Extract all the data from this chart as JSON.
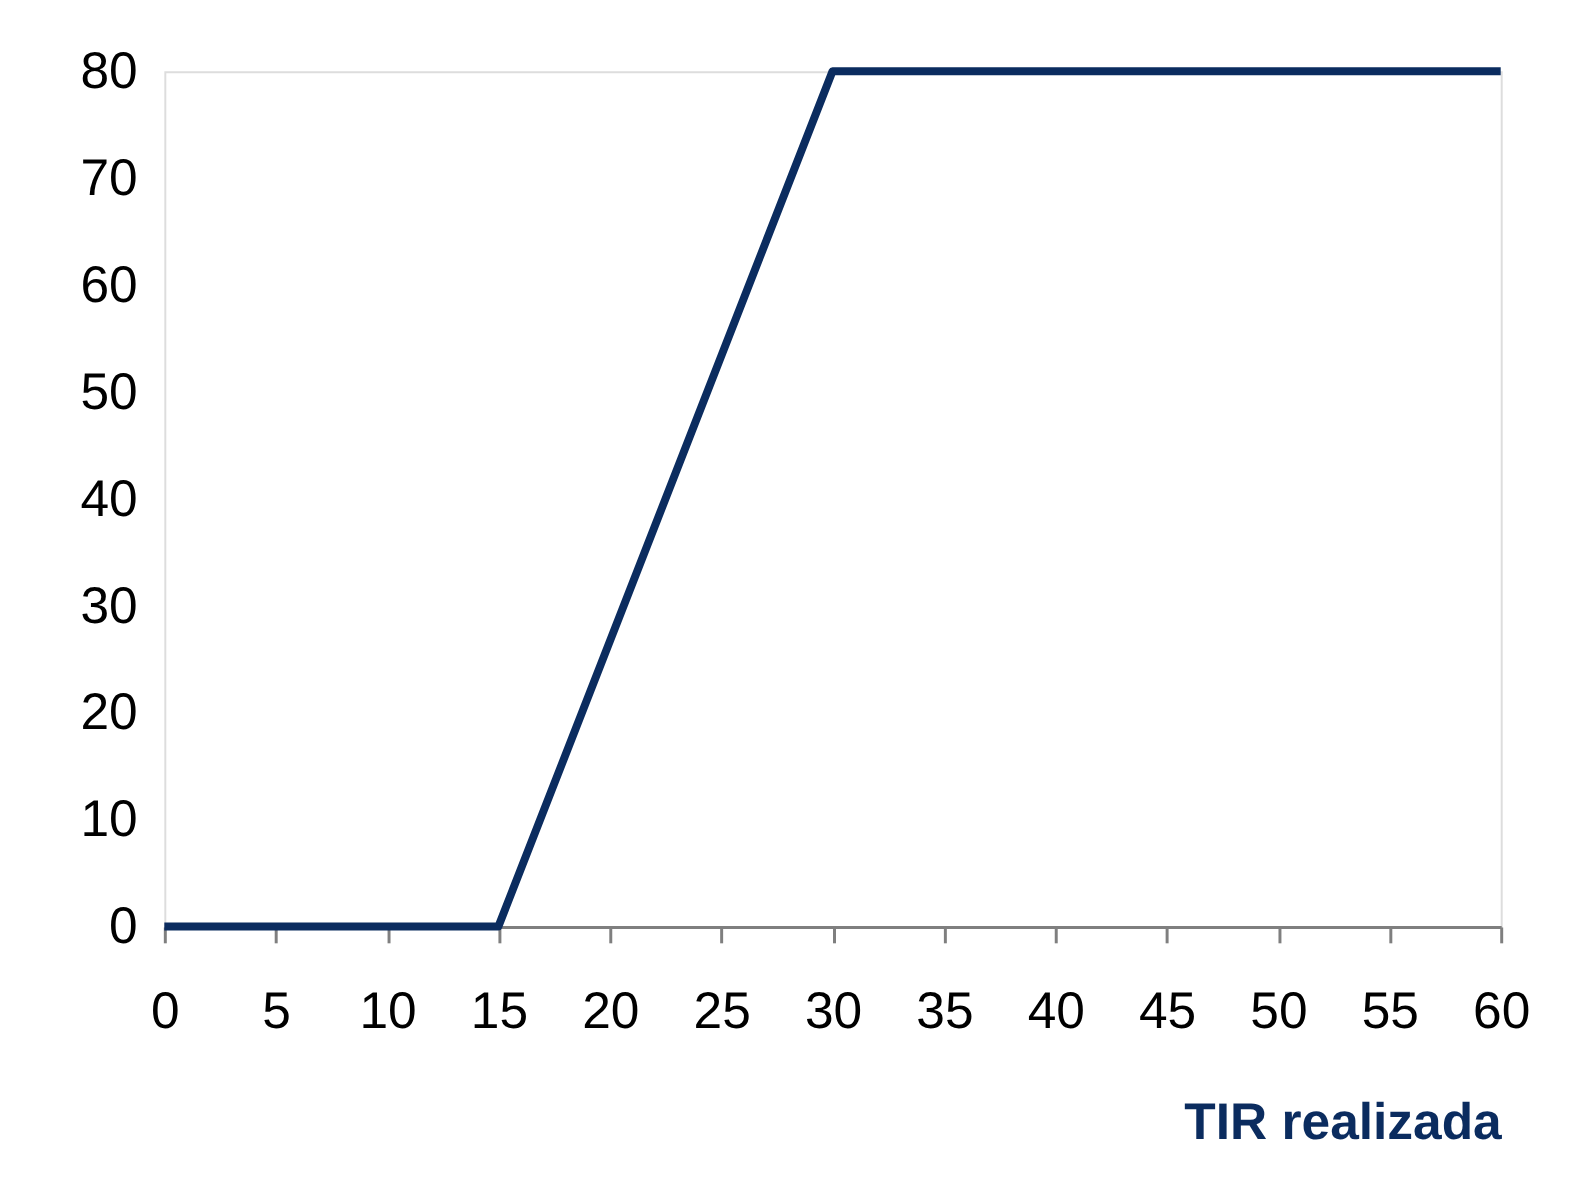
{
  "chart_data": {
    "type": "line",
    "xlabel": "TIR realizada",
    "x": [
      0,
      15,
      30,
      60
    ],
    "series": [
      {
        "color": "#0b2c5f",
        "values": [
          0,
          0,
          80,
          80
        ]
      }
    ],
    "xlim": [
      0,
      60
    ],
    "xticks": [
      0,
      5,
      10,
      15,
      20,
      25,
      30,
      35,
      40,
      45,
      50,
      55,
      60
    ],
    "ylim": [
      0,
      80
    ],
    "yticks": [
      0,
      10,
      20,
      30,
      40,
      50,
      60,
      70,
      80
    ],
    "grid": false,
    "marker": "none",
    "line_style": "solid"
  }
}
